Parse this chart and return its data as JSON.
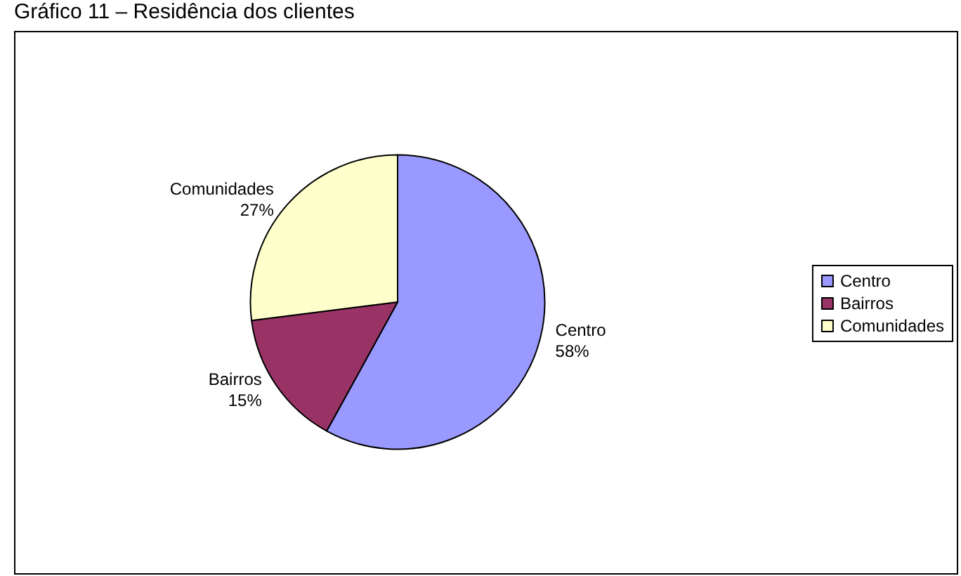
{
  "chart_data": {
    "type": "pie",
    "title": "Gráfico 11 – Residência dos clientes",
    "categories": [
      "Centro",
      "Bairros",
      "Comunidades"
    ],
    "values": [
      58,
      15,
      27
    ],
    "colors": [
      "#9999ff",
      "#993366",
      "#ffffcc"
    ],
    "value_labels": [
      "58%",
      "15%",
      "27%"
    ],
    "legend": "right"
  }
}
